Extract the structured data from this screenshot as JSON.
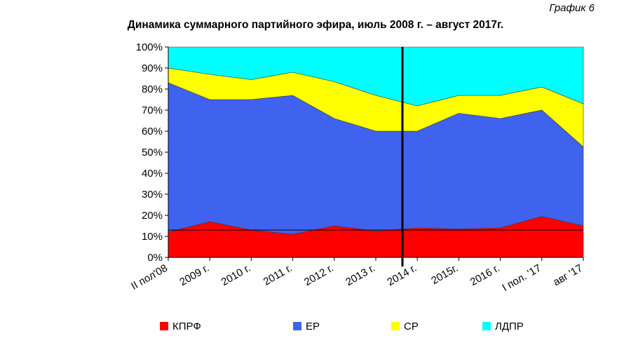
{
  "chart_data": {
    "type": "stacked_area",
    "title": "Динамика суммарного партийного эфира, июль 2008 г. – август 2017г.",
    "subtitle": "График 6",
    "categories": [
      "II пол'08",
      "2009 г.",
      "2010 г.",
      "2011 г.",
      "2012 г.",
      "2013 г.",
      "2014 г.",
      "2015г.",
      "2016 г.",
      "I пол. '17",
      "авг '17"
    ],
    "series": [
      {
        "name": "КПРФ",
        "color": "#ff0000",
        "values": [
          12,
          17,
          13,
          11,
          15,
          12.5,
          14,
          13.5,
          14,
          19.5,
          15
        ]
      },
      {
        "name": "ЕР",
        "color": "#3f63ef",
        "values": [
          71,
          58,
          62,
          66,
          51,
          47.5,
          46,
          55,
          52,
          50.5,
          37.5
        ]
      },
      {
        "name": "СР",
        "color": "#ffff00",
        "values": [
          7,
          12,
          9.5,
          11,
          17.5,
          17,
          12,
          8.5,
          11,
          11,
          20.5
        ]
      },
      {
        "name": "ЛДПР",
        "color": "#00ffff",
        "values": [
          10,
          13,
          15.5,
          12,
          16.5,
          23,
          28,
          23,
          23,
          19,
          27
        ]
      }
    ],
    "ylim": [
      0,
      100
    ],
    "yticks": [
      {
        "value": 0,
        "label": "0%"
      },
      {
        "value": 10,
        "label": "10%"
      },
      {
        "value": 20,
        "label": "20%"
      },
      {
        "value": 30,
        "label": "30%"
      },
      {
        "value": 40,
        "label": "40%"
      },
      {
        "value": 50,
        "label": "50%"
      },
      {
        "value": 60,
        "label": "60%"
      },
      {
        "value": 70,
        "label": "70%"
      },
      {
        "value": 80,
        "label": "80%"
      },
      {
        "value": 90,
        "label": "90%"
      },
      {
        "value": 100,
        "label": "100%"
      }
    ]
  }
}
